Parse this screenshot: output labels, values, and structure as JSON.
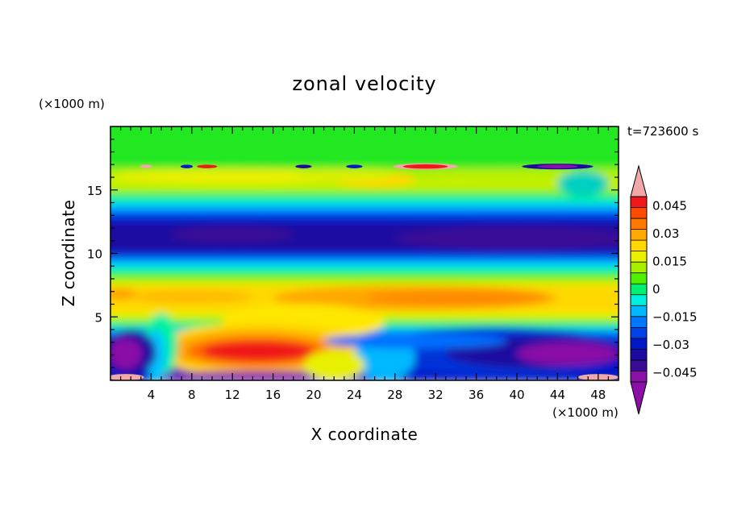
{
  "chart_data": {
    "type": "heatmap",
    "title": "zonal velocity",
    "xlabel": "X coordinate",
    "ylabel": "Z coordinate",
    "x_unit": "(×1000 m)",
    "y_unit": "(×1000 m)",
    "time_label": "t=723600 s",
    "xlim": [
      0,
      50
    ],
    "ylim": [
      0,
      20
    ],
    "x_ticks": [
      4,
      8,
      12,
      16,
      20,
      24,
      28,
      32,
      36,
      40,
      44,
      48
    ],
    "y_ticks": [
      5,
      10,
      15
    ],
    "colorbar": {
      "range": [
        -0.05,
        0.05
      ],
      "labels": [
        "0.045",
        "0.03",
        "0.015",
        "0",
        "−0.015",
        "−0.03",
        "−0.045"
      ],
      "label_values": [
        0.045,
        0.03,
        0.015,
        0,
        -0.015,
        -0.03,
        -0.045
      ],
      "colors": [
        "#8b10a8",
        "#3a0c96",
        "#1a0aa0",
        "#0018c8",
        "#0042e8",
        "#0078ff",
        "#00b8ff",
        "#00f0e0",
        "#00f070",
        "#50f000",
        "#a8f000",
        "#e8f000",
        "#ffd800",
        "#ffa800",
        "#ff7800",
        "#ff4a00",
        "#f01818"
      ],
      "over_color": "#f0a8a8",
      "under_color": "#8b10a8"
    }
  }
}
